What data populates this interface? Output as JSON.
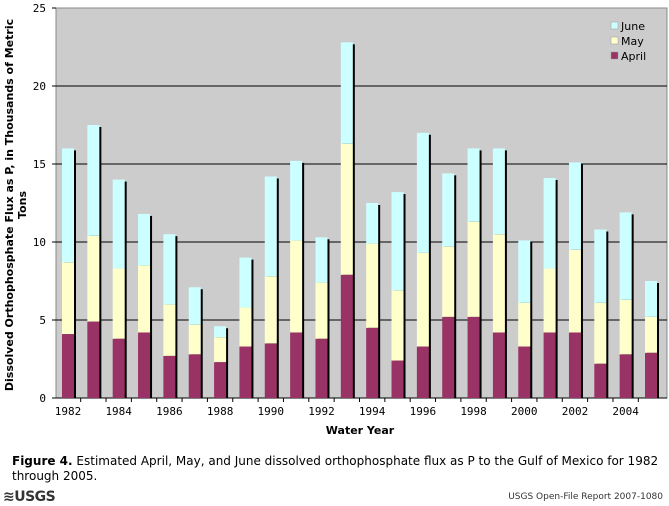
{
  "chart_data": {
    "type": "bar",
    "stacked": true,
    "title": "",
    "xlabel": "Water Year",
    "ylabel": "Dissolved Orthophosphate Flux as P, in Thousands of Metric Tons",
    "ylim": [
      0,
      25
    ],
    "yticks": [
      0,
      5,
      10,
      15,
      20,
      25
    ],
    "grid": true,
    "legend_position": "top-right",
    "categories": [
      "1982",
      "1983",
      "1984",
      "1985",
      "1986",
      "1987",
      "1988",
      "1989",
      "1990",
      "1991",
      "1992",
      "1993",
      "1994",
      "1995",
      "1996",
      "1997",
      "1998",
      "1999",
      "2000",
      "2001",
      "2002",
      "2003",
      "2004",
      "2005"
    ],
    "xtick_labels": [
      "1982",
      "1984",
      "1986",
      "1988",
      "1990",
      "1992",
      "1994",
      "1996",
      "1998",
      "2000",
      "2002",
      "2004"
    ],
    "series": [
      {
        "name": "April",
        "color": "#993366",
        "values": [
          4.1,
          4.9,
          3.8,
          4.2,
          2.7,
          2.8,
          2.3,
          3.3,
          3.5,
          4.2,
          3.8,
          7.9,
          4.5,
          2.4,
          3.3,
          5.2,
          5.2,
          4.2,
          3.3,
          4.2,
          4.2,
          2.2,
          2.8,
          2.9
        ]
      },
      {
        "name": "May",
        "color": "#ffffcc",
        "values": [
          4.6,
          5.5,
          4.5,
          4.3,
          3.3,
          1.9,
          1.6,
          2.5,
          4.3,
          5.9,
          3.6,
          8.4,
          5.4,
          4.5,
          6.0,
          4.5,
          6.1,
          6.3,
          2.8,
          4.1,
          5.3,
          3.9,
          3.5,
          2.3
        ]
      },
      {
        "name": "June",
        "color": "#ccffff",
        "values": [
          7.3,
          7.1,
          5.7,
          3.3,
          4.5,
          2.4,
          0.7,
          3.2,
          6.4,
          5.1,
          2.9,
          6.5,
          2.6,
          6.3,
          7.7,
          4.7,
          4.7,
          5.5,
          4.0,
          5.8,
          5.6,
          4.7,
          5.6,
          2.3
        ]
      }
    ],
    "legend_order": [
      "June",
      "May",
      "April"
    ]
  },
  "caption": {
    "label": "Figure 4.",
    "text": " Estimated April, May, and June dissolved orthophosphate flux as P to the Gulf of Mexico for 1982 through 2005."
  },
  "footer": {
    "logo": "≋USGS",
    "report": "USGS Open-File Report 2007-1080"
  }
}
